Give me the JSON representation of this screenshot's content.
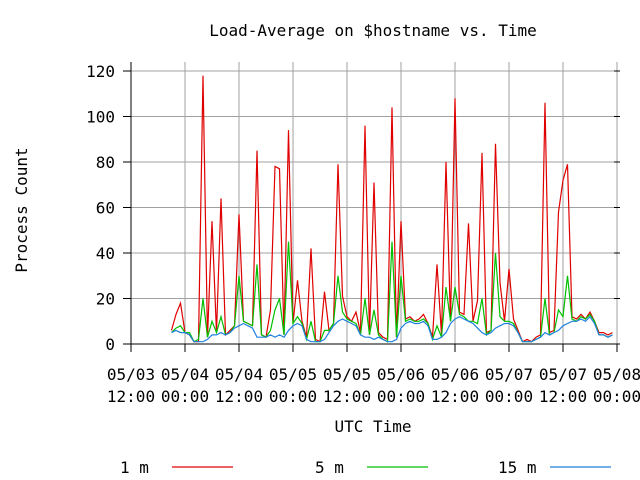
{
  "chart_data": {
    "type": "line",
    "title": "Load-Average on $hostname vs. Time",
    "x_label": "UTC Time",
    "y_label": "Process Count",
    "xlim": [
      0,
      108
    ],
    "xticks": [
      {
        "value": 0,
        "label": [
          "05/03",
          "12:00"
        ]
      },
      {
        "value": 12,
        "label": [
          "05/04",
          "00:00"
        ]
      },
      {
        "value": 24,
        "label": [
          "05/04",
          "12:00"
        ]
      },
      {
        "value": 36,
        "label": [
          "05/05",
          "00:00"
        ]
      },
      {
        "value": 48,
        "label": [
          "05/05",
          "12:00"
        ]
      },
      {
        "value": 60,
        "label": [
          "05/06",
          "00:00"
        ]
      },
      {
        "value": 72,
        "label": [
          "05/06",
          "12:00"
        ]
      },
      {
        "value": 84,
        "label": [
          "05/07",
          "00:00"
        ]
      },
      {
        "value": 96,
        "label": [
          "05/07",
          "12:00"
        ]
      },
      {
        "value": 108,
        "label": [
          "05/08",
          "00:00"
        ]
      }
    ],
    "ylim": [
      0,
      120
    ],
    "yticks": [
      0,
      20,
      40,
      60,
      80,
      100,
      120
    ],
    "grid": true,
    "x": [
      9,
      10,
      11,
      12,
      13,
      14,
      15,
      16,
      17,
      18,
      19,
      20,
      21,
      22,
      23,
      24,
      25,
      26,
      27,
      28,
      29,
      30,
      31,
      32,
      33,
      34,
      35,
      36,
      37,
      38,
      39,
      40,
      41,
      42,
      43,
      44,
      45,
      46,
      47,
      48,
      49,
      50,
      51,
      52,
      53,
      54,
      55,
      56,
      57,
      58,
      59,
      60,
      61,
      62,
      63,
      64,
      65,
      66,
      67,
      68,
      69,
      70,
      71,
      72,
      73,
      74,
      75,
      76,
      77,
      78,
      79,
      80,
      81,
      82,
      83,
      84,
      85,
      86,
      87,
      88,
      89,
      90,
      91,
      92,
      93,
      94,
      95,
      96,
      97,
      98,
      99,
      100,
      101,
      102,
      103,
      104,
      105,
      106,
      107
    ],
    "series": [
      {
        "name": "1 m",
        "color": "#e00000",
        "values": [
          6,
          13,
          18,
          5,
          4,
          1,
          1,
          118,
          3,
          54,
          5,
          64,
          4,
          6,
          8,
          57,
          10,
          9,
          8,
          85,
          4,
          3,
          15,
          78,
          77,
          4,
          94,
          9,
          28,
          10,
          3,
          42,
          2,
          1,
          23,
          6,
          9,
          79,
          21,
          12,
          10,
          14,
          5,
          96,
          4,
          71,
          5,
          3,
          2,
          104,
          3,
          54,
          11,
          12,
          10,
          11,
          13,
          9,
          3,
          35,
          4,
          80,
          10,
          108,
          14,
          13,
          53,
          10,
          19,
          84,
          5,
          6,
          88,
          27,
          10,
          33,
          11,
          6,
          1,
          2,
          1,
          3,
          4,
          106,
          5,
          6,
          58,
          72,
          79,
          12,
          11,
          13,
          11,
          14,
          10,
          5,
          5,
          4,
          5
        ]
      },
      {
        "name": "5 m",
        "color": "#00c000",
        "values": [
          5,
          7,
          8,
          5,
          5,
          1,
          2,
          20,
          3,
          10,
          5,
          12,
          4,
          5,
          8,
          30,
          10,
          9,
          8,
          35,
          4,
          3,
          6,
          15,
          20,
          4,
          45,
          9,
          12,
          9,
          2,
          10,
          1,
          1,
          6,
          6,
          9,
          30,
          14,
          11,
          10,
          9,
          4,
          20,
          4,
          15,
          4,
          2,
          1,
          45,
          3,
          30,
          10,
          11,
          10,
          10,
          11,
          9,
          2,
          8,
          3,
          25,
          10,
          25,
          13,
          12,
          10,
          10,
          9,
          20,
          4,
          6,
          40,
          12,
          10,
          10,
          9,
          5,
          1,
          1,
          1,
          2,
          3,
          20,
          4,
          5,
          15,
          12,
          30,
          11,
          10,
          12,
          11,
          13,
          10,
          4,
          4,
          3,
          4
        ]
      },
      {
        "name": "15 m",
        "color": "#2080e0",
        "values": [
          5,
          6,
          5,
          5,
          4,
          1,
          1,
          1,
          2,
          4,
          4,
          5,
          4,
          5,
          7,
          8,
          9,
          8,
          7,
          3,
          3,
          3,
          4,
          3,
          4,
          3,
          6,
          8,
          9,
          8,
          2,
          1,
          1,
          1,
          2,
          5,
          8,
          10,
          11,
          10,
          9,
          8,
          4,
          3,
          3,
          2,
          3,
          2,
          1,
          1,
          2,
          7,
          9,
          10,
          9,
          9,
          10,
          8,
          2,
          2,
          3,
          5,
          9,
          11,
          12,
          11,
          10,
          9,
          7,
          5,
          4,
          5,
          7,
          8,
          9,
          9,
          8,
          5,
          1,
          1,
          1,
          2,
          3,
          5,
          4,
          5,
          6,
          8,
          9,
          10,
          10,
          11,
          10,
          12,
          9,
          4,
          4,
          3,
          4
        ]
      }
    ]
  }
}
